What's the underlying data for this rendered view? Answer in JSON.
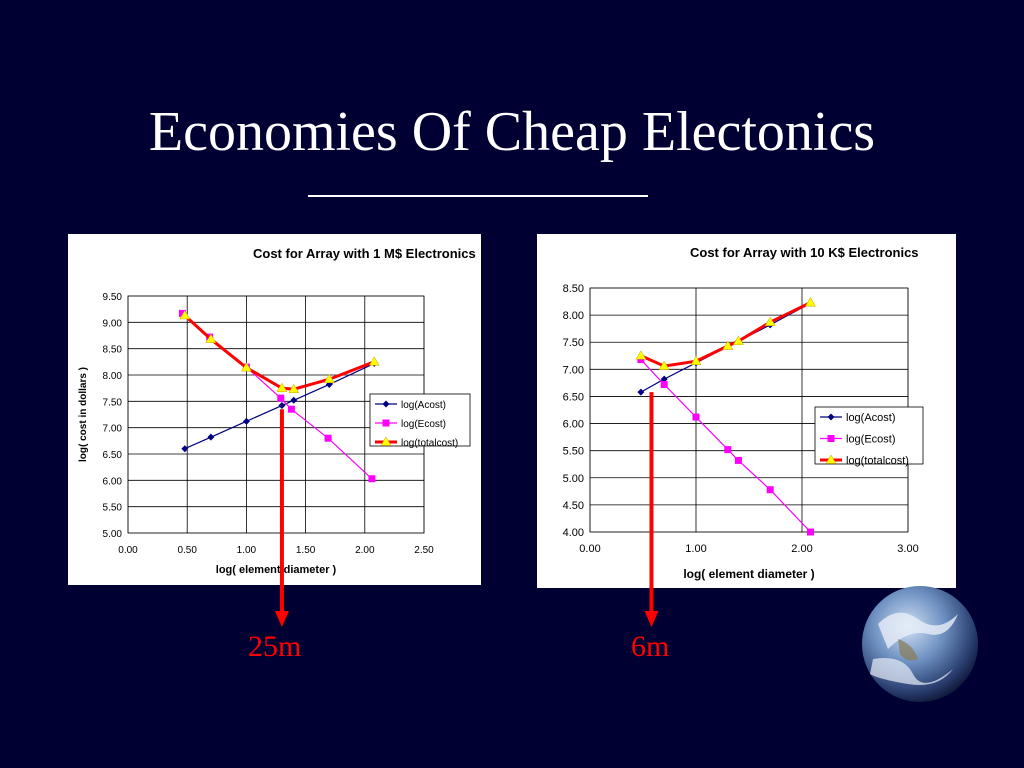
{
  "slide": {
    "title": "Economies Of Cheap Electonics",
    "callouts": [
      "25m",
      "6m"
    ]
  },
  "colors": {
    "background": "#000033",
    "acost": "#000080",
    "ecost": "#ff00ff",
    "totalcost_line": "#ff0000",
    "totalcost_marker": "#ffff00",
    "callout": "#ff0000"
  },
  "chart_data": [
    {
      "type": "line",
      "title": "Cost for Array with 1 M$ Electronics",
      "xlabel": "log( element diameter )",
      "ylabel": "log( cost in dollars )",
      "xlim": [
        0,
        2.5
      ],
      "ylim": [
        5,
        9.5
      ],
      "xticks": [
        "0.00",
        "0.50",
        "1.00",
        "1.50",
        "2.00",
        "2.50"
      ],
      "yticks": [
        "5.00",
        "5.50",
        "6.00",
        "6.50",
        "7.00",
        "7.50",
        "8.00",
        "8.50",
        "9.00",
        "9.50"
      ],
      "grid": true,
      "legend": "right",
      "series": [
        {
          "name": "log(Acost)",
          "marker": "diamond",
          "x": [
            0.48,
            0.7,
            1.0,
            1.3,
            1.4,
            1.7,
            2.08
          ],
          "y": [
            6.6,
            6.82,
            7.12,
            7.42,
            7.52,
            7.82,
            8.22
          ]
        },
        {
          "name": "log(Ecost)",
          "marker": "square",
          "x": [
            0.46,
            0.69,
            1.0,
            1.29,
            1.38,
            1.69,
            2.06
          ],
          "y": [
            9.17,
            8.72,
            8.15,
            7.56,
            7.35,
            6.8,
            6.03
          ]
        },
        {
          "name": "log(totalcost)",
          "marker": "triangle",
          "x": [
            0.48,
            0.7,
            1.0,
            1.3,
            1.4,
            1.7,
            2.08
          ],
          "y": [
            9.13,
            8.68,
            8.14,
            7.75,
            7.73,
            7.92,
            8.25
          ]
        }
      ],
      "arrow": {
        "x": 1.3,
        "y_from": 7.35,
        "label": "25m"
      }
    },
    {
      "type": "line",
      "title": "Cost for Array with 10 K$ Electronics",
      "xlabel": "log( element diameter )",
      "ylabel": "",
      "xlim": [
        0,
        3
      ],
      "ylim": [
        4,
        8.5
      ],
      "xticks": [
        "0.00",
        "1.00",
        "2.00",
        "3.00"
      ],
      "yticks": [
        "4.00",
        "4.50",
        "5.00",
        "5.50",
        "6.00",
        "6.50",
        "7.00",
        "7.50",
        "8.00",
        "8.50"
      ],
      "grid": true,
      "legend": "right",
      "series": [
        {
          "name": "log(Acost)",
          "marker": "diamond",
          "x": [
            0.48,
            0.7,
            1.0,
            1.3,
            1.4,
            1.7,
            2.08
          ],
          "y": [
            6.58,
            6.82,
            7.12,
            7.42,
            7.52,
            7.82,
            8.22
          ]
        },
        {
          "name": "log(Ecost)",
          "marker": "square",
          "x": [
            0.48,
            0.7,
            1.0,
            1.3,
            1.4,
            1.7,
            2.08
          ],
          "y": [
            7.18,
            6.72,
            6.12,
            5.52,
            5.32,
            4.78,
            4.0
          ]
        },
        {
          "name": "log(totalcost)",
          "marker": "triangle",
          "x": [
            0.48,
            0.7,
            1.0,
            1.3,
            1.4,
            1.7,
            2.08
          ],
          "y": [
            7.25,
            7.06,
            7.15,
            7.43,
            7.52,
            7.87,
            8.23
          ]
        }
      ],
      "arrow": {
        "x": 0.58,
        "y_from": 6.58,
        "label": "6m"
      }
    }
  ]
}
